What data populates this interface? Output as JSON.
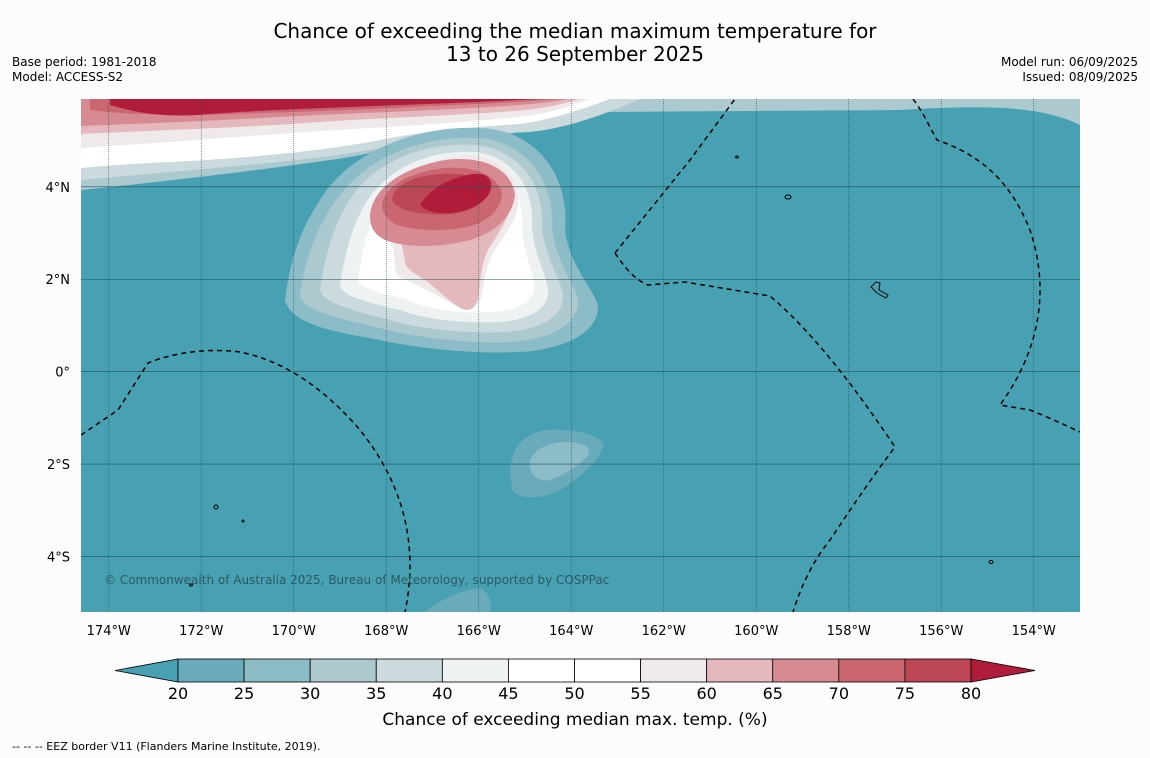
{
  "title": {
    "line1": "Chance of exceeding the median maximum temperature for",
    "line2": "13 to 26 September 2025"
  },
  "meta_left": {
    "base_period": "Base period: 1981-2018",
    "model": "Model: ACCESS-S2"
  },
  "meta_right": {
    "model_run": "Model run: 06/09/2025",
    "issued": "Issued: 08/09/2025"
  },
  "map": {
    "lon_labels": [
      "174°W",
      "172°W",
      "170°W",
      "168°W",
      "166°W",
      "164°W",
      "162°W",
      "160°W",
      "158°W",
      "156°W",
      "154°W"
    ],
    "lon_values": [
      -174,
      -172,
      -170,
      -168,
      -166,
      -164,
      -162,
      -160,
      -158,
      -156,
      -154
    ],
    "lat_labels": [
      "4°N",
      "2°N",
      "0°",
      "2°S",
      "4°S"
    ],
    "lat_values": [
      4,
      2,
      0,
      -2,
      -4
    ],
    "lon_range": [
      -174.6,
      -153
    ],
    "lat_range": [
      -5.2,
      5.9
    ],
    "copyright": "© Commonwealth of Australia 2025, Bureau of Meteorology, supported by COSPPac",
    "background_color": "#48a1b2"
  },
  "colorbar": {
    "ticks": [
      "20",
      "25",
      "30",
      "35",
      "40",
      "45",
      "50",
      "55",
      "60",
      "65",
      "70",
      "75",
      "80"
    ],
    "colors": [
      "#48a1b2",
      "#69aabb",
      "#8bbcc7",
      "#abc9cf",
      "#cbdadd",
      "#eef2f3",
      "#ffffff",
      "#ffffff",
      "#efe9ea",
      "#e4b8bc",
      "#d78a92",
      "#c96670",
      "#bd4654",
      "#b11c3a"
    ],
    "label": "Chance of exceeding median max. temp. (%)"
  },
  "footer": "--  --  -- EEZ border V11 (Flanders Marine Institute, 2019)."
}
